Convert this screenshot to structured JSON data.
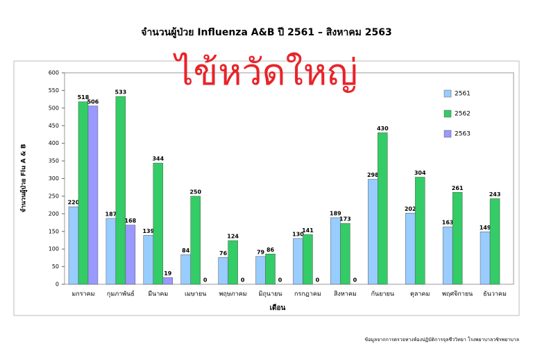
{
  "chart_data": {
    "type": "bar",
    "title": "จำนวนผู้ป่วย Influenza A&B ปี 2561 –  สิงหาคม 2563",
    "annotation": "ไข้หวัดใหญ่",
    "y_label": "จำนวนผู้ป่วย Flu A & B",
    "x_label": "เดือน",
    "source": "ข้อมูลจากการตรวจทางห้องปฏิบัติการจุลชีววิทยา โรงพยาบาลวชิรพยาบาล",
    "categories": [
      "มกราคม",
      "กุมภาพันธ์",
      "มีนาคม",
      "เมษายน",
      "พฤษภาคม",
      "มิถุนายน",
      "กรกฎาคม",
      "สิงหาคม",
      "กันยายน",
      "ตุลาคม",
      "พฤศจิกายน",
      "ธันวาคม"
    ],
    "series": [
      {
        "name": "2561",
        "color": "#99ccff",
        "values": [
          220,
          187,
          139,
          84,
          76,
          79,
          130,
          189,
          298,
          202,
          163,
          149
        ]
      },
      {
        "name": "2562",
        "color": "#33cc66",
        "values": [
          518,
          533,
          344,
          250,
          124,
          86,
          141,
          173,
          430,
          304,
          261,
          243
        ]
      },
      {
        "name": "2563",
        "color": "#9999ff",
        "values": [
          506,
          168,
          19,
          0,
          0,
          0,
          0,
          0,
          null,
          null,
          null,
          null
        ]
      }
    ],
    "ylim": [
      0,
      600
    ],
    "yticks": [
      0,
      50,
      100,
      150,
      200,
      250,
      300,
      350,
      400,
      450,
      500,
      550,
      600
    ],
    "grid": false,
    "legend": "right"
  }
}
